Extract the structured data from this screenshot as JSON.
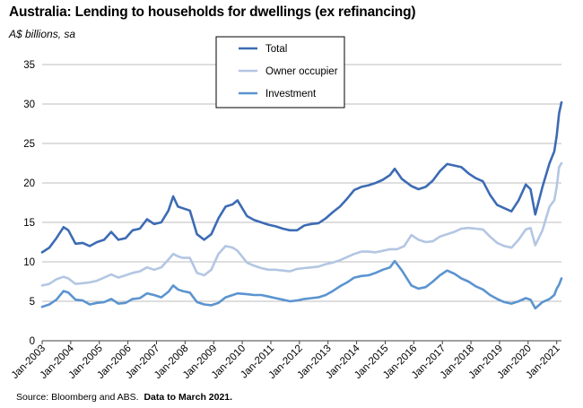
{
  "chart_data": {
    "type": "line",
    "title": "Australia: Lending to households for dwellings (ex refinancing)",
    "ylabel": "A$ billions, sa",
    "ylim": [
      0,
      35
    ],
    "yticks": [
      "0",
      "5",
      "10",
      "15",
      "20",
      "25",
      "30",
      "35"
    ],
    "xlim": [
      "2003-01",
      "2021-03"
    ],
    "xticks": [
      "Jan-2003",
      "Jan-2004",
      "Jan-2005",
      "Jan-2006",
      "Jan-2007",
      "Jan-2008",
      "Jan-2009",
      "Jan-2010",
      "Jan-2011",
      "Jan-2012",
      "Jan-2013",
      "Jan-2014",
      "Jan-2015",
      "Jan-2016",
      "Jan-2017",
      "Jan-2018",
      "Jan-2019",
      "Jan-2020",
      "Jan-2021"
    ],
    "grid": true,
    "legend_position": "top-center",
    "series": [
      {
        "name": "Total",
        "color": "#3d6bb4",
        "points": [
          [
            "2003-01",
            11.2
          ],
          [
            "2003-04",
            11.8
          ],
          [
            "2003-07",
            13.0
          ],
          [
            "2003-10",
            14.4
          ],
          [
            "2003-12",
            14.0
          ],
          [
            "2004-03",
            12.3
          ],
          [
            "2004-06",
            12.4
          ],
          [
            "2004-09",
            12.0
          ],
          [
            "2004-12",
            12.5
          ],
          [
            "2005-03",
            12.8
          ],
          [
            "2005-06",
            13.8
          ],
          [
            "2005-09",
            12.8
          ],
          [
            "2005-12",
            13.0
          ],
          [
            "2006-03",
            14.0
          ],
          [
            "2006-06",
            14.2
          ],
          [
            "2006-09",
            15.4
          ],
          [
            "2006-12",
            14.8
          ],
          [
            "2007-03",
            15.0
          ],
          [
            "2007-06",
            16.5
          ],
          [
            "2007-08",
            18.3
          ],
          [
            "2007-10",
            17.0
          ],
          [
            "2007-12",
            16.8
          ],
          [
            "2008-03",
            16.5
          ],
          [
            "2008-06",
            13.5
          ],
          [
            "2008-09",
            12.8
          ],
          [
            "2008-12",
            13.5
          ],
          [
            "2009-03",
            15.5
          ],
          [
            "2009-06",
            17.0
          ],
          [
            "2009-09",
            17.3
          ],
          [
            "2009-11",
            17.8
          ],
          [
            "2010-03",
            15.8
          ],
          [
            "2010-06",
            15.3
          ],
          [
            "2010-09",
            15.0
          ],
          [
            "2010-12",
            14.7
          ],
          [
            "2011-03",
            14.5
          ],
          [
            "2011-06",
            14.2
          ],
          [
            "2011-09",
            14.0
          ],
          [
            "2011-12",
            14.0
          ],
          [
            "2012-03",
            14.6
          ],
          [
            "2012-06",
            14.8
          ],
          [
            "2012-09",
            14.9
          ],
          [
            "2012-12",
            15.5
          ],
          [
            "2013-03",
            16.3
          ],
          [
            "2013-06",
            17.0
          ],
          [
            "2013-09",
            18.0
          ],
          [
            "2013-12",
            19.1
          ],
          [
            "2014-03",
            19.5
          ],
          [
            "2014-06",
            19.7
          ],
          [
            "2014-09",
            20.0
          ],
          [
            "2014-12",
            20.4
          ],
          [
            "2015-03",
            21.0
          ],
          [
            "2015-05",
            21.8
          ],
          [
            "2015-08",
            20.5
          ],
          [
            "2015-12",
            19.6
          ],
          [
            "2016-03",
            19.2
          ],
          [
            "2016-06",
            19.5
          ],
          [
            "2016-09",
            20.3
          ],
          [
            "2016-12",
            21.5
          ],
          [
            "2017-03",
            22.4
          ],
          [
            "2017-06",
            22.2
          ],
          [
            "2017-09",
            22.0
          ],
          [
            "2017-12",
            21.2
          ],
          [
            "2018-03",
            20.6
          ],
          [
            "2018-06",
            20.2
          ],
          [
            "2018-09",
            18.5
          ],
          [
            "2018-12",
            17.2
          ],
          [
            "2019-03",
            16.8
          ],
          [
            "2019-06",
            16.4
          ],
          [
            "2019-09",
            17.8
          ],
          [
            "2019-12",
            19.8
          ],
          [
            "2020-02",
            19.2
          ],
          [
            "2020-04",
            16.0
          ],
          [
            "2020-07",
            19.5
          ],
          [
            "2020-10",
            22.5
          ],
          [
            "2020-12",
            24.0
          ],
          [
            "2021-01",
            26.0
          ],
          [
            "2021-02",
            28.8
          ],
          [
            "2021-03",
            30.2
          ]
        ]
      },
      {
        "name": "Owner occupier",
        "color": "#b3c6e3",
        "points": [
          [
            "2003-01",
            7.0
          ],
          [
            "2003-04",
            7.2
          ],
          [
            "2003-07",
            7.8
          ],
          [
            "2003-10",
            8.1
          ],
          [
            "2003-12",
            7.9
          ],
          [
            "2004-03",
            7.2
          ],
          [
            "2004-06",
            7.3
          ],
          [
            "2004-09",
            7.4
          ],
          [
            "2004-12",
            7.6
          ],
          [
            "2005-03",
            8.0
          ],
          [
            "2005-06",
            8.4
          ],
          [
            "2005-09",
            8.0
          ],
          [
            "2005-12",
            8.3
          ],
          [
            "2006-03",
            8.6
          ],
          [
            "2006-06",
            8.8
          ],
          [
            "2006-09",
            9.3
          ],
          [
            "2006-12",
            9.0
          ],
          [
            "2007-03",
            9.3
          ],
          [
            "2007-06",
            10.3
          ],
          [
            "2007-08",
            11.0
          ],
          [
            "2007-10",
            10.7
          ],
          [
            "2007-12",
            10.5
          ],
          [
            "2008-03",
            10.5
          ],
          [
            "2008-06",
            8.6
          ],
          [
            "2008-09",
            8.3
          ],
          [
            "2008-12",
            9.0
          ],
          [
            "2009-03",
            11.0
          ],
          [
            "2009-06",
            12.0
          ],
          [
            "2009-09",
            11.8
          ],
          [
            "2009-11",
            11.4
          ],
          [
            "2010-03",
            9.9
          ],
          [
            "2010-06",
            9.5
          ],
          [
            "2010-09",
            9.2
          ],
          [
            "2010-12",
            9.0
          ],
          [
            "2011-03",
            9.0
          ],
          [
            "2011-06",
            8.9
          ],
          [
            "2011-09",
            8.8
          ],
          [
            "2011-12",
            9.1
          ],
          [
            "2012-03",
            9.2
          ],
          [
            "2012-06",
            9.3
          ],
          [
            "2012-09",
            9.4
          ],
          [
            "2012-12",
            9.7
          ],
          [
            "2013-03",
            9.9
          ],
          [
            "2013-06",
            10.2
          ],
          [
            "2013-09",
            10.6
          ],
          [
            "2013-12",
            11.0
          ],
          [
            "2014-03",
            11.3
          ],
          [
            "2014-06",
            11.3
          ],
          [
            "2014-09",
            11.2
          ],
          [
            "2014-12",
            11.4
          ],
          [
            "2015-03",
            11.6
          ],
          [
            "2015-06",
            11.6
          ],
          [
            "2015-09",
            12.0
          ],
          [
            "2015-12",
            13.4
          ],
          [
            "2016-03",
            12.8
          ],
          [
            "2016-06",
            12.5
          ],
          [
            "2016-09",
            12.6
          ],
          [
            "2016-12",
            13.2
          ],
          [
            "2017-03",
            13.5
          ],
          [
            "2017-06",
            13.8
          ],
          [
            "2017-09",
            14.2
          ],
          [
            "2017-12",
            14.3
          ],
          [
            "2018-03",
            14.2
          ],
          [
            "2018-06",
            14.1
          ],
          [
            "2018-09",
            13.2
          ],
          [
            "2018-12",
            12.4
          ],
          [
            "2019-03",
            12.0
          ],
          [
            "2019-06",
            11.8
          ],
          [
            "2019-09",
            12.8
          ],
          [
            "2019-12",
            14.1
          ],
          [
            "2020-02",
            14.3
          ],
          [
            "2020-04",
            12.1
          ],
          [
            "2020-07",
            14.0
          ],
          [
            "2020-10",
            17.0
          ],
          [
            "2020-12",
            17.8
          ],
          [
            "2021-01",
            19.5
          ],
          [
            "2021-02",
            22.0
          ],
          [
            "2021-03",
            22.5
          ]
        ]
      },
      {
        "name": "Investment",
        "color": "#5b94d0",
        "points": [
          [
            "2003-01",
            4.3
          ],
          [
            "2003-04",
            4.6
          ],
          [
            "2003-07",
            5.2
          ],
          [
            "2003-10",
            6.3
          ],
          [
            "2003-12",
            6.1
          ],
          [
            "2004-03",
            5.2
          ],
          [
            "2004-06",
            5.1
          ],
          [
            "2004-09",
            4.6
          ],
          [
            "2004-12",
            4.8
          ],
          [
            "2005-03",
            4.9
          ],
          [
            "2005-06",
            5.3
          ],
          [
            "2005-09",
            4.7
          ],
          [
            "2005-12",
            4.8
          ],
          [
            "2006-03",
            5.3
          ],
          [
            "2006-06",
            5.4
          ],
          [
            "2006-09",
            6.0
          ],
          [
            "2006-12",
            5.8
          ],
          [
            "2007-03",
            5.5
          ],
          [
            "2007-06",
            6.2
          ],
          [
            "2007-08",
            7.0
          ],
          [
            "2007-10",
            6.5
          ],
          [
            "2007-12",
            6.3
          ],
          [
            "2008-03",
            6.1
          ],
          [
            "2008-06",
            4.9
          ],
          [
            "2008-09",
            4.6
          ],
          [
            "2008-12",
            4.5
          ],
          [
            "2009-03",
            4.8
          ],
          [
            "2009-06",
            5.5
          ],
          [
            "2009-09",
            5.8
          ],
          [
            "2009-11",
            6.0
          ],
          [
            "2010-03",
            5.9
          ],
          [
            "2010-06",
            5.8
          ],
          [
            "2010-09",
            5.8
          ],
          [
            "2010-12",
            5.6
          ],
          [
            "2011-03",
            5.4
          ],
          [
            "2011-06",
            5.2
          ],
          [
            "2011-09",
            5.0
          ],
          [
            "2011-12",
            5.1
          ],
          [
            "2012-03",
            5.3
          ],
          [
            "2012-06",
            5.4
          ],
          [
            "2012-09",
            5.5
          ],
          [
            "2012-12",
            5.8
          ],
          [
            "2013-03",
            6.3
          ],
          [
            "2013-06",
            6.9
          ],
          [
            "2013-09",
            7.4
          ],
          [
            "2013-12",
            8.0
          ],
          [
            "2014-03",
            8.2
          ],
          [
            "2014-06",
            8.3
          ],
          [
            "2014-09",
            8.6
          ],
          [
            "2014-12",
            9.0
          ],
          [
            "2015-03",
            9.3
          ],
          [
            "2015-05",
            10.1
          ],
          [
            "2015-08",
            8.9
          ],
          [
            "2015-12",
            7.0
          ],
          [
            "2016-03",
            6.6
          ],
          [
            "2016-06",
            6.8
          ],
          [
            "2016-09",
            7.5
          ],
          [
            "2016-12",
            8.3
          ],
          [
            "2017-03",
            8.9
          ],
          [
            "2017-06",
            8.5
          ],
          [
            "2017-09",
            7.9
          ],
          [
            "2017-12",
            7.5
          ],
          [
            "2018-03",
            6.9
          ],
          [
            "2018-06",
            6.5
          ],
          [
            "2018-09",
            5.8
          ],
          [
            "2018-12",
            5.3
          ],
          [
            "2019-03",
            4.9
          ],
          [
            "2019-06",
            4.7
          ],
          [
            "2019-09",
            5.0
          ],
          [
            "2019-12",
            5.4
          ],
          [
            "2020-02",
            5.2
          ],
          [
            "2020-04",
            4.1
          ],
          [
            "2020-07",
            4.9
          ],
          [
            "2020-10",
            5.3
          ],
          [
            "2020-12",
            5.8
          ],
          [
            "2021-01",
            6.6
          ],
          [
            "2021-02",
            7.1
          ],
          [
            "2021-03",
            7.9
          ]
        ]
      }
    ]
  },
  "source_prefix": "Source: Bloomberg and ABS.",
  "source_bold": "Data to March 2021."
}
